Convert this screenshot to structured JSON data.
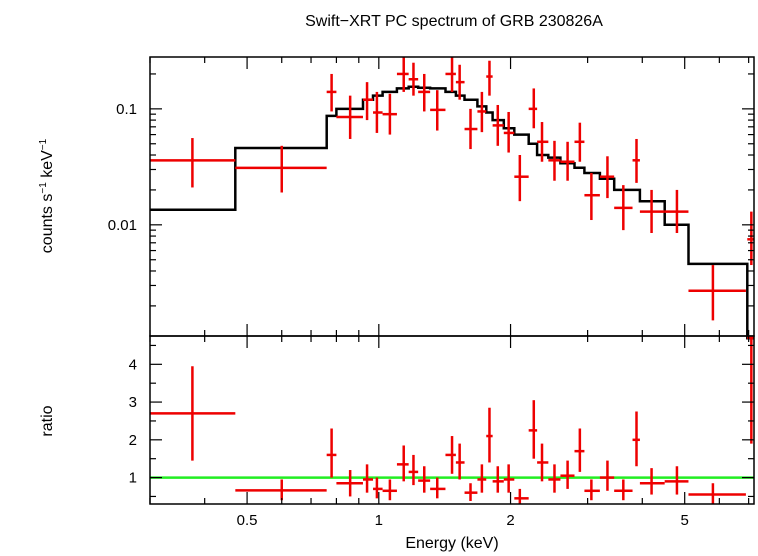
{
  "chart_data": [
    {
      "type": "scatter",
      "panel": "spectrum",
      "title": "Swift−XRT PC spectrum of GRB 230826A",
      "xlabel": "Energy (keV)",
      "ylabel_base": "counts s",
      "ylabel_exp1": "−1",
      "ylabel_mid": " keV",
      "ylabel_exp2": "−1",
      "xscale": "log",
      "yscale": "log",
      "xlim": [
        0.3,
        7.2
      ],
      "ylim": [
        0.0011,
        0.28
      ],
      "ytick_values": [
        0.01,
        0.1
      ],
      "ytick_labels": [
        "0.01",
        "0.1"
      ],
      "series": [
        {
          "kind": "data",
          "color": "#ee0000",
          "points": [
            {
              "x": 0.375,
              "xlo": 0.3,
              "xhi": 0.47,
              "y": 0.036,
              "ylo": 0.021,
              "yhi": 0.056
            },
            {
              "x": 0.6,
              "xlo": 0.47,
              "xhi": 0.76,
              "y": 0.031,
              "ylo": 0.019,
              "yhi": 0.048
            },
            {
              "x": 0.78,
              "xlo": 0.76,
              "xhi": 0.8,
              "y": 0.14,
              "ylo": 0.095,
              "yhi": 0.2
            },
            {
              "x": 0.86,
              "xlo": 0.8,
              "xhi": 0.92,
              "y": 0.085,
              "ylo": 0.055,
              "yhi": 0.13
            },
            {
              "x": 0.94,
              "xlo": 0.92,
              "xhi": 0.97,
              "y": 0.12,
              "ylo": 0.08,
              "yhi": 0.17
            },
            {
              "x": 0.99,
              "xlo": 0.97,
              "xhi": 1.02,
              "y": 0.093,
              "ylo": 0.062,
              "yhi": 0.14
            },
            {
              "x": 1.06,
              "xlo": 1.02,
              "xhi": 1.1,
              "y": 0.09,
              "ylo": 0.06,
              "yhi": 0.135
            },
            {
              "x": 1.14,
              "xlo": 1.1,
              "xhi": 1.17,
              "y": 0.2,
              "ylo": 0.14,
              "yhi": 0.28
            },
            {
              "x": 1.2,
              "xlo": 1.17,
              "xhi": 1.23,
              "y": 0.18,
              "ylo": 0.13,
              "yhi": 0.25
            },
            {
              "x": 1.27,
              "xlo": 1.23,
              "xhi": 1.31,
              "y": 0.14,
              "ylo": 0.095,
              "yhi": 0.2
            },
            {
              "x": 1.36,
              "xlo": 1.31,
              "xhi": 1.42,
              "y": 0.098,
              "ylo": 0.065,
              "yhi": 0.145
            },
            {
              "x": 1.47,
              "xlo": 1.42,
              "xhi": 1.5,
              "y": 0.2,
              "ylo": 0.14,
              "yhi": 0.28
            },
            {
              "x": 1.53,
              "xlo": 1.5,
              "xhi": 1.57,
              "y": 0.17,
              "ylo": 0.12,
              "yhi": 0.24
            },
            {
              "x": 1.62,
              "xlo": 1.57,
              "xhi": 1.68,
              "y": 0.067,
              "ylo": 0.045,
              "yhi": 0.1
            },
            {
              "x": 1.72,
              "xlo": 1.68,
              "xhi": 1.76,
              "y": 0.095,
              "ylo": 0.063,
              "yhi": 0.14
            },
            {
              "x": 1.79,
              "xlo": 1.76,
              "xhi": 1.82,
              "y": 0.19,
              "ylo": 0.13,
              "yhi": 0.26
            },
            {
              "x": 1.87,
              "xlo": 1.82,
              "xhi": 1.93,
              "y": 0.072,
              "ylo": 0.048,
              "yhi": 0.108
            },
            {
              "x": 1.98,
              "xlo": 1.93,
              "xhi": 2.04,
              "y": 0.062,
              "ylo": 0.042,
              "yhi": 0.094
            },
            {
              "x": 2.1,
              "xlo": 2.04,
              "xhi": 2.2,
              "y": 0.026,
              "ylo": 0.016,
              "yhi": 0.04
            },
            {
              "x": 2.26,
              "xlo": 2.2,
              "xhi": 2.3,
              "y": 0.1,
              "ylo": 0.068,
              "yhi": 0.15
            },
            {
              "x": 2.36,
              "xlo": 2.3,
              "xhi": 2.44,
              "y": 0.052,
              "ylo": 0.035,
              "yhi": 0.077
            },
            {
              "x": 2.52,
              "xlo": 2.44,
              "xhi": 2.6,
              "y": 0.036,
              "ylo": 0.024,
              "yhi": 0.053
            },
            {
              "x": 2.7,
              "xlo": 2.6,
              "xhi": 2.8,
              "y": 0.035,
              "ylo": 0.024,
              "yhi": 0.052
            },
            {
              "x": 2.88,
              "xlo": 2.8,
              "xhi": 2.95,
              "y": 0.052,
              "ylo": 0.035,
              "yhi": 0.076
            },
            {
              "x": 3.06,
              "xlo": 2.95,
              "xhi": 3.2,
              "y": 0.018,
              "ylo": 0.011,
              "yhi": 0.028
            },
            {
              "x": 3.33,
              "xlo": 3.2,
              "xhi": 3.45,
              "y": 0.026,
              "ylo": 0.017,
              "yhi": 0.039
            },
            {
              "x": 3.62,
              "xlo": 3.45,
              "xhi": 3.8,
              "y": 0.014,
              "ylo": 0.009,
              "yhi": 0.022
            },
            {
              "x": 3.88,
              "xlo": 3.8,
              "xhi": 3.95,
              "y": 0.036,
              "ylo": 0.023,
              "yhi": 0.055
            },
            {
              "x": 4.2,
              "xlo": 3.95,
              "xhi": 4.5,
              "y": 0.013,
              "ylo": 0.0085,
              "yhi": 0.02
            },
            {
              "x": 4.8,
              "xlo": 4.5,
              "xhi": 5.1,
              "y": 0.013,
              "ylo": 0.0085,
              "yhi": 0.02
            },
            {
              "x": 5.8,
              "xlo": 5.1,
              "xhi": 6.9,
              "y": 0.0027,
              "ylo": 0.0015,
              "yhi": 0.0045
            },
            {
              "x": 7.1,
              "xlo": 6.95,
              "xhi": 7.2,
              "y": 0.0075,
              "ylo": 0.0045,
              "yhi": 0.013
            }
          ]
        },
        {
          "kind": "model",
          "color": "#000000",
          "steps": [
            {
              "xlo": 0.3,
              "xhi": 0.47,
              "y": 0.0135
            },
            {
              "xlo": 0.47,
              "xhi": 0.76,
              "y": 0.046
            },
            {
              "xlo": 0.76,
              "xhi": 0.8,
              "y": 0.087
            },
            {
              "xlo": 0.8,
              "xhi": 0.92,
              "y": 0.1
            },
            {
              "xlo": 0.92,
              "xhi": 0.97,
              "y": 0.12
            },
            {
              "xlo": 0.97,
              "xhi": 1.02,
              "y": 0.13
            },
            {
              "xlo": 1.02,
              "xhi": 1.1,
              "y": 0.14
            },
            {
              "xlo": 1.1,
              "xhi": 1.17,
              "y": 0.15
            },
            {
              "xlo": 1.17,
              "xhi": 1.23,
              "y": 0.155
            },
            {
              "xlo": 1.23,
              "xhi": 1.31,
              "y": 0.152
            },
            {
              "xlo": 1.31,
              "xhi": 1.42,
              "y": 0.15
            },
            {
              "xlo": 1.42,
              "xhi": 1.5,
              "y": 0.14
            },
            {
              "xlo": 1.5,
              "xhi": 1.57,
              "y": 0.13
            },
            {
              "xlo": 1.57,
              "xhi": 1.68,
              "y": 0.12
            },
            {
              "xlo": 1.68,
              "xhi": 1.76,
              "y": 0.105
            },
            {
              "xlo": 1.76,
              "xhi": 1.82,
              "y": 0.093
            },
            {
              "xlo": 1.82,
              "xhi": 1.93,
              "y": 0.08
            },
            {
              "xlo": 1.93,
              "xhi": 2.04,
              "y": 0.068
            },
            {
              "xlo": 2.04,
              "xhi": 2.2,
              "y": 0.06
            },
            {
              "xlo": 2.2,
              "xhi": 2.3,
              "y": 0.05
            },
            {
              "xlo": 2.3,
              "xhi": 2.44,
              "y": 0.04
            },
            {
              "xlo": 2.44,
              "xhi": 2.6,
              "y": 0.038
            },
            {
              "xlo": 2.6,
              "xhi": 2.8,
              "y": 0.034
            },
            {
              "xlo": 2.8,
              "xhi": 2.95,
              "y": 0.031
            },
            {
              "xlo": 2.95,
              "xhi": 3.2,
              "y": 0.028
            },
            {
              "xlo": 3.2,
              "xhi": 3.45,
              "y": 0.025
            },
            {
              "xlo": 3.45,
              "xhi": 3.8,
              "y": 0.02
            },
            {
              "xlo": 3.8,
              "xhi": 3.95,
              "y": 0.02
            },
            {
              "xlo": 3.95,
              "xhi": 4.5,
              "y": 0.016
            },
            {
              "xlo": 4.5,
              "xhi": 5.1,
              "y": 0.01
            },
            {
              "xlo": 5.1,
              "xhi": 6.95,
              "y": 0.0046
            },
            {
              "xlo": 6.95,
              "xhi": 7.2,
              "y": 0.00105
            }
          ]
        }
      ]
    },
    {
      "type": "scatter",
      "panel": "ratio",
      "xlabel": "Energy (keV)",
      "ylabel": "ratio",
      "xscale": "log",
      "xlim": [
        0.3,
        7.2
      ],
      "ylim": [
        0.3,
        4.75
      ],
      "ytick_values": [
        1,
        2,
        3,
        4
      ],
      "ytick_labels": [
        "1",
        "2",
        "3",
        "4"
      ],
      "xtick_values": [
        0.5,
        1,
        2,
        5
      ],
      "xtick_labels": [
        "0.5",
        "1",
        "2",
        "5"
      ],
      "reference_line": {
        "y": 1,
        "color": "#22ee22"
      },
      "series": [
        {
          "kind": "ratio",
          "color": "#ee0000",
          "points": [
            {
              "x": 0.375,
              "xlo": 0.3,
              "xhi": 0.47,
              "y": 2.7,
              "ylo": 1.45,
              "yhi": 3.95
            },
            {
              "x": 0.6,
              "xlo": 0.47,
              "xhi": 0.76,
              "y": 0.66,
              "ylo": 0.4,
              "yhi": 0.95
            },
            {
              "x": 0.78,
              "xlo": 0.76,
              "xhi": 0.8,
              "y": 1.6,
              "ylo": 1.0,
              "yhi": 2.3
            },
            {
              "x": 0.86,
              "xlo": 0.8,
              "xhi": 0.92,
              "y": 0.85,
              "ylo": 0.5,
              "yhi": 1.2
            },
            {
              "x": 0.94,
              "xlo": 0.92,
              "xhi": 0.97,
              "y": 0.95,
              "ylo": 0.6,
              "yhi": 1.35
            },
            {
              "x": 0.99,
              "xlo": 0.97,
              "xhi": 1.02,
              "y": 0.7,
              "ylo": 0.45,
              "yhi": 1.0
            },
            {
              "x": 1.06,
              "xlo": 1.02,
              "xhi": 1.1,
              "y": 0.65,
              "ylo": 0.4,
              "yhi": 0.95
            },
            {
              "x": 1.14,
              "xlo": 1.1,
              "xhi": 1.17,
              "y": 1.35,
              "ylo": 0.9,
              "yhi": 1.85
            },
            {
              "x": 1.2,
              "xlo": 1.17,
              "xhi": 1.23,
              "y": 1.15,
              "ylo": 0.8,
              "yhi": 1.6
            },
            {
              "x": 1.27,
              "xlo": 1.23,
              "xhi": 1.31,
              "y": 0.92,
              "ylo": 0.6,
              "yhi": 1.3
            },
            {
              "x": 1.36,
              "xlo": 1.31,
              "xhi": 1.42,
              "y": 0.7,
              "ylo": 0.45,
              "yhi": 1.0
            },
            {
              "x": 1.47,
              "xlo": 1.42,
              "xhi": 1.5,
              "y": 1.6,
              "ylo": 1.1,
              "yhi": 2.1
            },
            {
              "x": 1.53,
              "xlo": 1.5,
              "xhi": 1.57,
              "y": 1.4,
              "ylo": 0.95,
              "yhi": 1.9
            },
            {
              "x": 1.62,
              "xlo": 1.57,
              "xhi": 1.68,
              "y": 0.6,
              "ylo": 0.38,
              "yhi": 0.85
            },
            {
              "x": 1.72,
              "xlo": 1.68,
              "xhi": 1.76,
              "y": 0.95,
              "ylo": 0.6,
              "yhi": 1.35
            },
            {
              "x": 1.79,
              "xlo": 1.76,
              "xhi": 1.82,
              "y": 2.1,
              "ylo": 1.4,
              "yhi": 2.85
            },
            {
              "x": 1.87,
              "xlo": 1.82,
              "xhi": 1.93,
              "y": 0.9,
              "ylo": 0.6,
              "yhi": 1.3
            },
            {
              "x": 1.98,
              "xlo": 1.93,
              "xhi": 2.04,
              "y": 0.95,
              "ylo": 0.6,
              "yhi": 1.35
            },
            {
              "x": 2.1,
              "xlo": 2.04,
              "xhi": 2.2,
              "y": 0.45,
              "ylo": 0.3,
              "yhi": 0.7
            },
            {
              "x": 2.26,
              "xlo": 2.2,
              "xhi": 2.3,
              "y": 2.25,
              "ylo": 1.5,
              "yhi": 3.05
            },
            {
              "x": 2.36,
              "xlo": 2.3,
              "xhi": 2.44,
              "y": 1.4,
              "ylo": 0.9,
              "yhi": 1.9
            },
            {
              "x": 2.52,
              "xlo": 2.44,
              "xhi": 2.6,
              "y": 0.95,
              "ylo": 0.6,
              "yhi": 1.35
            },
            {
              "x": 2.7,
              "xlo": 2.6,
              "xhi": 2.8,
              "y": 1.05,
              "ylo": 0.7,
              "yhi": 1.45
            },
            {
              "x": 2.88,
              "xlo": 2.8,
              "xhi": 2.95,
              "y": 1.7,
              "ylo": 1.15,
              "yhi": 2.3
            },
            {
              "x": 3.06,
              "xlo": 2.95,
              "xhi": 3.2,
              "y": 0.65,
              "ylo": 0.4,
              "yhi": 0.95
            },
            {
              "x": 3.33,
              "xlo": 3.2,
              "xhi": 3.45,
              "y": 1.0,
              "ylo": 0.65,
              "yhi": 1.45
            },
            {
              "x": 3.62,
              "xlo": 3.45,
              "xhi": 3.8,
              "y": 0.65,
              "ylo": 0.4,
              "yhi": 0.95
            },
            {
              "x": 3.88,
              "xlo": 3.8,
              "xhi": 3.95,
              "y": 2.0,
              "ylo": 1.3,
              "yhi": 2.75
            },
            {
              "x": 4.2,
              "xlo": 3.95,
              "xhi": 4.5,
              "y": 0.85,
              "ylo": 0.55,
              "yhi": 1.25
            },
            {
              "x": 4.8,
              "xlo": 4.5,
              "xhi": 5.1,
              "y": 0.9,
              "ylo": 0.55,
              "yhi": 1.3
            },
            {
              "x": 5.8,
              "xlo": 5.1,
              "xhi": 6.9,
              "y": 0.55,
              "ylo": 0.3,
              "yhi": 0.85
            },
            {
              "x": 7.1,
              "xlo": 6.95,
              "xhi": 7.2,
              "y": 4.7,
              "ylo": 1.9,
              "yhi": 4.75
            }
          ]
        }
      ]
    }
  ]
}
